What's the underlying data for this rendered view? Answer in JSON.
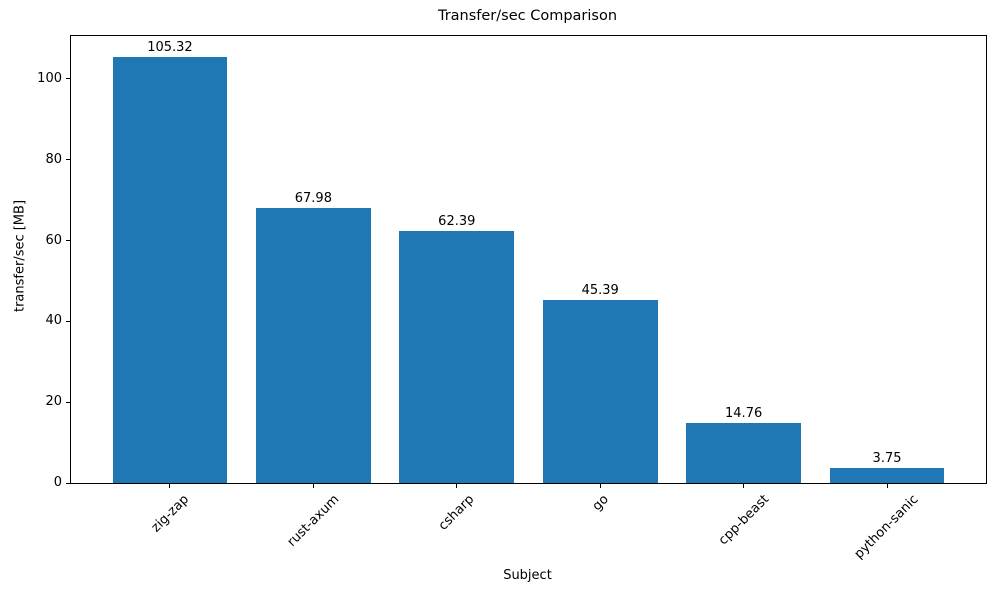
{
  "chart_data": {
    "type": "bar",
    "title": "Transfer/sec Comparison",
    "xlabel": "Subject",
    "ylabel": "transfer/sec [MB]",
    "categories": [
      "zig-zap",
      "rust-axum",
      "csharp",
      "go",
      "cpp-beast",
      "python-sanic"
    ],
    "values": [
      105.32,
      67.98,
      62.39,
      45.39,
      14.76,
      3.75
    ],
    "bar_labels": [
      "105.32",
      "67.98",
      "62.39",
      "45.39",
      "14.76",
      "3.75"
    ],
    "bar_color": "#1f77b4",
    "yticks": [
      0,
      20,
      40,
      60,
      80,
      100
    ],
    "ytick_labels": [
      "0",
      "20",
      "40",
      "60",
      "80",
      "100"
    ],
    "ylim": [
      0,
      110.6
    ],
    "xlim": [
      -0.69,
      5.69
    ],
    "bar_width_units": 0.8,
    "grid": false,
    "legend": "none"
  }
}
